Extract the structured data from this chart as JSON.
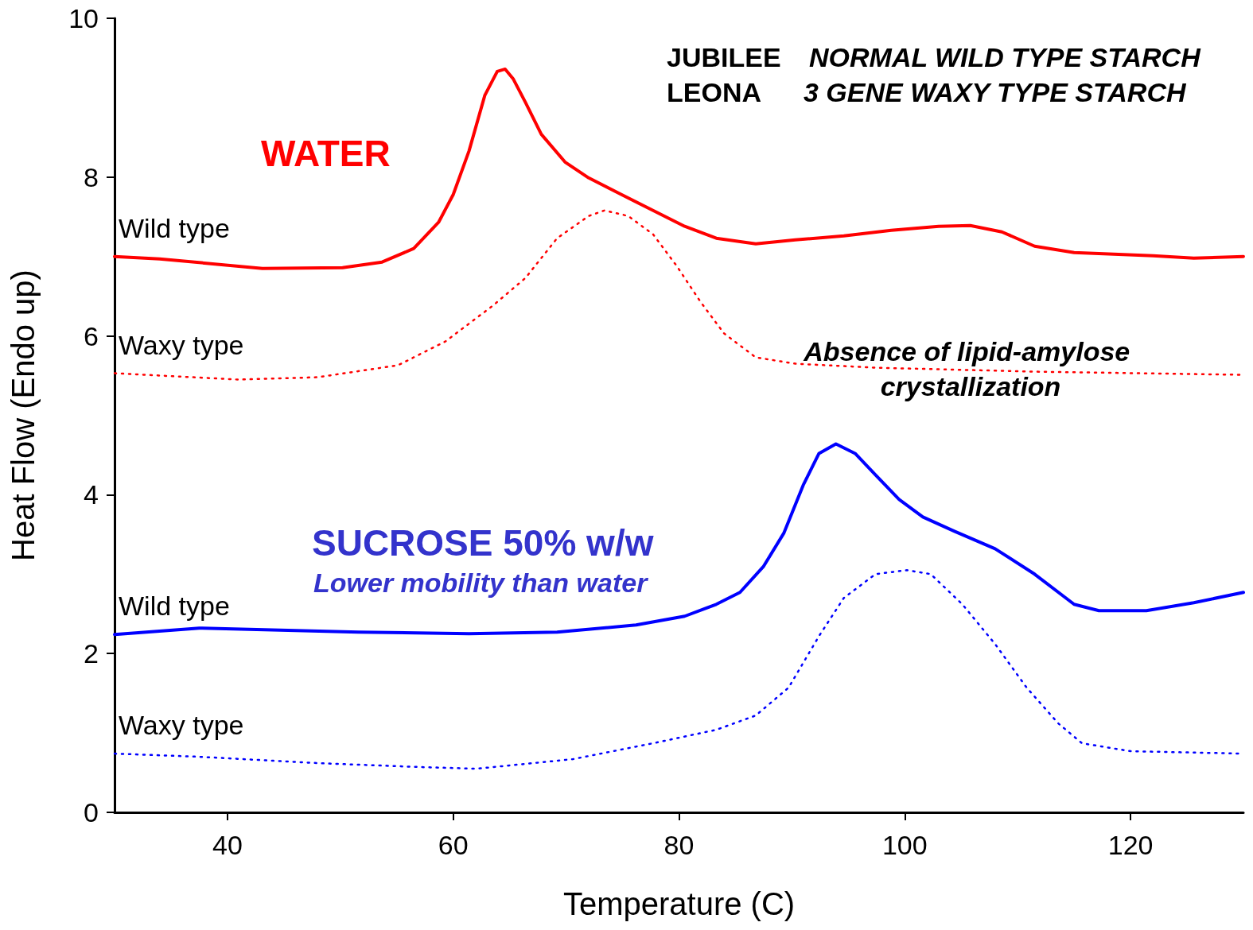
{
  "chart_data": {
    "type": "line",
    "xlabel": "Temperature (C)",
    "ylabel": "Heat Flow (Endo up)",
    "xlim": [
      30,
      130
    ],
    "xticks": [
      40,
      60,
      80,
      100,
      120
    ],
    "ylim": [
      0,
      10
    ],
    "yticks": [
      0,
      2,
      4,
      6,
      8,
      10
    ],
    "grid": false,
    "legend": false,
    "marker": "none",
    "annotations": [
      "JUBILEE",
      "NORMAL WILD TYPE STARCH",
      "LEONA",
      "3 GENE WAXY TYPE STARCH",
      "WATER",
      "SUCROSE 50% w/w",
      "Lower mobility than water",
      "Absence of lipid-amylose crystallization"
    ],
    "series": [
      {
        "name": "Wild type",
        "color": "#ff0000",
        "line_style": "solid",
        "x": [
          30,
          34,
          43.1,
          50.2,
          53.7,
          56.5,
          58.7,
          60,
          61.4,
          62.8,
          63.9,
          64.6,
          65.3,
          66.4,
          67.8,
          69.9,
          72,
          74.9,
          77.7,
          80.5,
          83.3,
          86.8,
          90.3,
          94.6,
          98.8,
          103,
          105.8,
          108.6,
          111.5,
          115,
          122,
          125.6,
          130
        ],
        "values": [
          7.0,
          6.97,
          6.85,
          6.86,
          6.93,
          7.1,
          7.43,
          7.78,
          8.33,
          9.03,
          9.33,
          9.36,
          9.24,
          8.94,
          8.54,
          8.19,
          7.99,
          7.78,
          7.58,
          7.38,
          7.23,
          7.16,
          7.21,
          7.26,
          7.33,
          7.38,
          7.39,
          7.31,
          7.13,
          7.05,
          7.01,
          6.98,
          7.0
        ]
      },
      {
        "name": "Waxy type",
        "color": "#ff0000",
        "line_style": "dotted",
        "x": [
          30,
          41,
          48,
          55.1,
          59.3,
          63.5,
          66.4,
          69.2,
          72,
          73.4,
          75.5,
          77.7,
          79.8,
          81.9,
          84,
          86.8,
          90.3,
          97.4,
          111.5,
          130
        ],
        "values": [
          5.53,
          5.45,
          5.48,
          5.63,
          5.93,
          6.38,
          6.73,
          7.23,
          7.51,
          7.58,
          7.51,
          7.28,
          6.88,
          6.43,
          6.03,
          5.73,
          5.65,
          5.6,
          5.55,
          5.51
        ]
      },
      {
        "name": "Wild type",
        "color": "#0000ff",
        "line_style": "solid",
        "x": [
          30,
          37.5,
          51.6,
          61.4,
          69.2,
          76.2,
          80.5,
          83.3,
          85.4,
          87.5,
          89.3,
          91,
          92.4,
          93.9,
          95.6,
          97.4,
          99.5,
          101.6,
          104.4,
          108,
          111.5,
          115,
          117.2,
          121.4,
          125.6,
          130
        ],
        "values": [
          2.24,
          2.32,
          2.27,
          2.25,
          2.27,
          2.36,
          2.47,
          2.62,
          2.77,
          3.1,
          3.52,
          4.12,
          4.52,
          4.64,
          4.52,
          4.25,
          3.94,
          3.72,
          3.54,
          3.32,
          3.0,
          2.62,
          2.54,
          2.54,
          2.64,
          2.77
        ]
      },
      {
        "name": "Waxy type",
        "color": "#0000ff",
        "line_style": "dotted",
        "x": [
          30,
          37.5,
          48,
          57.2,
          62.1,
          70.6,
          77.7,
          83.3,
          86.8,
          89.7,
          92.4,
          94.6,
          97.4,
          100.2,
          102.3,
          105.1,
          108,
          110.8,
          113.6,
          115.7,
          120,
          130
        ],
        "values": [
          0.74,
          0.7,
          0.62,
          0.57,
          0.55,
          0.67,
          0.87,
          1.04,
          1.22,
          1.57,
          2.22,
          2.7,
          3.0,
          3.05,
          3.0,
          2.62,
          2.12,
          1.57,
          1.12,
          0.87,
          0.77,
          0.74
        ]
      }
    ]
  }
}
